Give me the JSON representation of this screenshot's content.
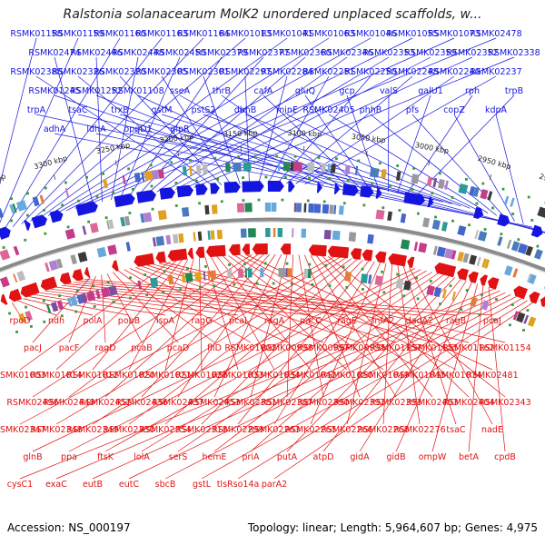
{
  "title": "Ralstonia solanacearum MolK2 unordered unplaced scaffolds, w...",
  "footer": {
    "accession": "Accession: NS_000197",
    "topology": "Topology: linear; Length: 5,964,607 bp; Genes: 4,975"
  },
  "colors": {
    "forward": "#1515e0",
    "reverse": "#e21212",
    "backbone": "#8a8a8a",
    "text": "#333333"
  },
  "kbp_ticks": [
    "3350 kbp",
    "3300 kbp",
    "3250 kbp",
    "3200 kbp",
    "3150 kbp",
    "3100 kbp",
    "3050 kbp",
    "3000 kbp",
    "2950 kbp",
    "2900 kbp"
  ],
  "top_labels": [
    "RSMK01158",
    "RSMK01159",
    "RSMK01160",
    "RSMK01163",
    "RSMK01164",
    "RSMK01013",
    "RSMK01041",
    "RSMK01063",
    "RSMK01046",
    "RSMK01055",
    "RSMK01073",
    "RSMK02478",
    "RSMK02474",
    "RSMK02446",
    "RSMK02448",
    "RSMK02450",
    "RSMK02379",
    "RSMK02377",
    "RSMK02360",
    "RSMK02346",
    "RSMK02353",
    "RSMK02359",
    "RSMK02352",
    "RSMK02338",
    "RSMK02388",
    "RSMK02326",
    "RSMK02320",
    "RSMK02305",
    "RSMK02301",
    "RSMK02297",
    "RSMK02284",
    "RSMK02251",
    "RSMK02250",
    "RSMK02248",
    "RSMK02240",
    "RSMK02237",
    "RSMK01245",
    "RSMK01252",
    "RSMK01108",
    "sseA",
    "thrB",
    "cafA",
    "gluQ",
    "gcp",
    "valS",
    "galU1",
    "rph",
    "trpB",
    "trpA",
    "tsaC",
    "trxB",
    "gstM",
    "pstS2",
    "dbhB",
    "minE",
    "RSMK02405",
    "phhB",
    "pfs",
    "copZ",
    "kdpA",
    "adhA",
    "ldhA",
    "opgD1",
    "glpR"
  ],
  "bottom_labels": [
    "rpoD",
    "ndh",
    "polA",
    "pobB",
    "ispA",
    "ragG",
    "pcaI",
    "ragA",
    "pacC",
    "ragE",
    "infA2",
    "dadA2",
    "ragB",
    "pcaJ",
    "pacJ",
    "pacF",
    "ragD",
    "pcaB",
    "pcaD",
    "fliD",
    "RSMK01002",
    "RSMK00998",
    "RSMK00997",
    "RSMK00995",
    "RSMK01157",
    "RSMK01155",
    "RSMK01162",
    "RSMK01154",
    "RSMK01003",
    "RSMK01014",
    "RSMK01012",
    "RSMK01020",
    "RSMK01021",
    "RSMK01028",
    "RSMK01033",
    "RSMK01034",
    "RSMK01042",
    "RSMK01050",
    "RSMK01049",
    "RSMK01045",
    "RSMK01074",
    "RSMK02481",
    "RSMK02496",
    "RSMK02449",
    "RSMK02452",
    "RSMK02436",
    "RSMK02437",
    "RSMK02453",
    "RSMK02381",
    "RSMK02387",
    "RSMK02390",
    "RSMK02392",
    "RSMK02393",
    "RSMK02403",
    "RSMK02404",
    "RSMK02343",
    "RSMK02347",
    "RSMK02348",
    "RSMK02349",
    "RSMK02350",
    "RSMK02354",
    "RSMK02318",
    "RSMK02299",
    "RSMK02263",
    "RSMK02265",
    "RSMK02266",
    "RSMK02268",
    "RSMK02276",
    "tsaC",
    "nadE",
    "glnB",
    "ppa",
    "ftsK",
    "lolA",
    "serS",
    "hemE",
    "priA",
    "putA",
    "atpD",
    "gidA",
    "gidB",
    "ompW",
    "betA",
    "cpdB",
    "cysC1",
    "exaC",
    "eutB",
    "eutC",
    "sbcB",
    "gstL",
    "tlsRso14a",
    "parA2"
  ]
}
